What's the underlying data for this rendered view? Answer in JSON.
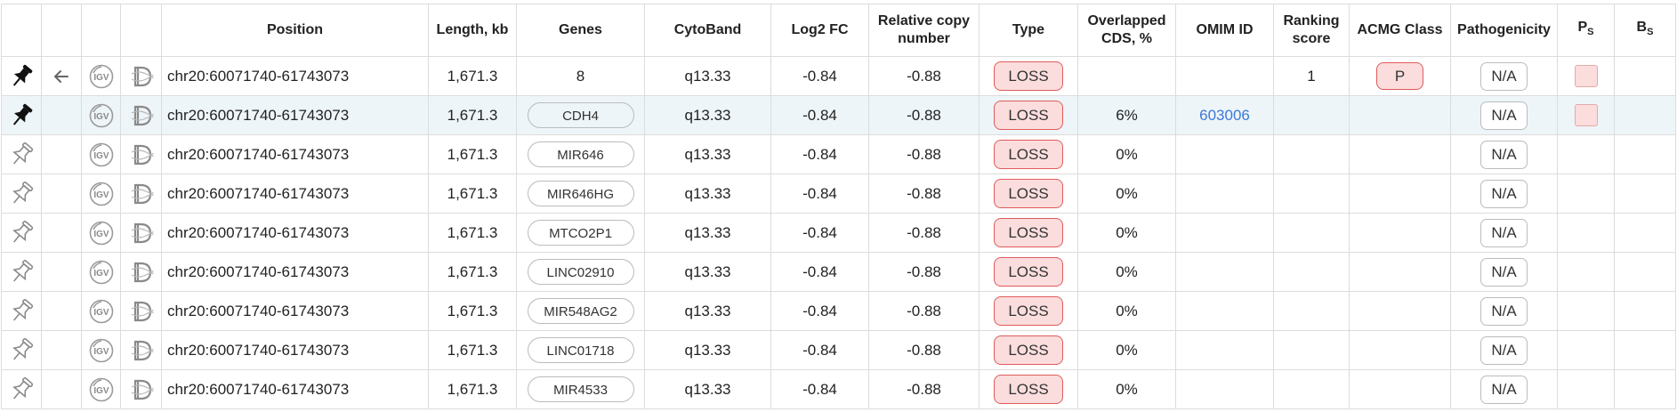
{
  "columns": {
    "position": "Position",
    "length": "Length, kb",
    "genes": "Genes",
    "cytoband": "CytoBand",
    "log2fc": "Log2 FC",
    "rcn_line1": "Relative copy",
    "rcn_line2": "number",
    "type": "Type",
    "ocds_line1": "Overlapped",
    "ocds_line2": "CDS, %",
    "omim": "OMIM ID",
    "rank_line1": "Ranking",
    "rank_line2": "score",
    "acmg": "ACMG Class",
    "pathogenicity": "Pathogenicity",
    "ps_main": "P",
    "ps_sub": "S",
    "bs_main": "B",
    "bs_sub": "S"
  },
  "icons": {
    "pin_filled": "pin-filled-icon",
    "pin_outline": "pin-outline-icon",
    "back": "arrow-left-icon",
    "igv": "igv-icon",
    "decipher": "decipher-icon"
  },
  "colors": {
    "loss_bg": "#fbdddd",
    "loss_border": "#e05a5a",
    "link": "#3c78d8",
    "highlight_row": "#eef5f8"
  },
  "rows": [
    {
      "pinned": true,
      "has_back": true,
      "position": "chr20:60071740-61743073",
      "length": "1,671.3",
      "genes": "8",
      "genes_is_count": true,
      "cytoband": "q13.33",
      "log2fc": "-0.84",
      "rcn": "-0.88",
      "type": "LOSS",
      "ocds": "",
      "omim": "",
      "rank": "1",
      "acmg": "P",
      "pathogenicity": "N/A",
      "ps": true
    },
    {
      "pinned": true,
      "has_back": false,
      "highlight": true,
      "position": "chr20:60071740-61743073",
      "length": "1,671.3",
      "genes": "CDH4",
      "cytoband": "q13.33",
      "log2fc": "-0.84",
      "rcn": "-0.88",
      "type": "LOSS",
      "ocds": "6%",
      "omim": "603006",
      "rank": "",
      "acmg": "",
      "pathogenicity": "N/A",
      "ps": true
    },
    {
      "pinned": false,
      "position": "chr20:60071740-61743073",
      "length": "1,671.3",
      "genes": "MIR646",
      "cytoband": "q13.33",
      "log2fc": "-0.84",
      "rcn": "-0.88",
      "type": "LOSS",
      "ocds": "0%",
      "omim": "",
      "rank": "",
      "acmg": "",
      "pathogenicity": "N/A",
      "ps": false
    },
    {
      "pinned": false,
      "position": "chr20:60071740-61743073",
      "length": "1,671.3",
      "genes": "MIR646HG",
      "cytoband": "q13.33",
      "log2fc": "-0.84",
      "rcn": "-0.88",
      "type": "LOSS",
      "ocds": "0%",
      "omim": "",
      "rank": "",
      "acmg": "",
      "pathogenicity": "N/A",
      "ps": false
    },
    {
      "pinned": false,
      "position": "chr20:60071740-61743073",
      "length": "1,671.3",
      "genes": "MTCO2P1",
      "cytoband": "q13.33",
      "log2fc": "-0.84",
      "rcn": "-0.88",
      "type": "LOSS",
      "ocds": "0%",
      "omim": "",
      "rank": "",
      "acmg": "",
      "pathogenicity": "N/A",
      "ps": false
    },
    {
      "pinned": false,
      "position": "chr20:60071740-61743073",
      "length": "1,671.3",
      "genes": "LINC02910",
      "cytoband": "q13.33",
      "log2fc": "-0.84",
      "rcn": "-0.88",
      "type": "LOSS",
      "ocds": "0%",
      "omim": "",
      "rank": "",
      "acmg": "",
      "pathogenicity": "N/A",
      "ps": false
    },
    {
      "pinned": false,
      "position": "chr20:60071740-61743073",
      "length": "1,671.3",
      "genes": "MIR548AG2",
      "cytoband": "q13.33",
      "log2fc": "-0.84",
      "rcn": "-0.88",
      "type": "LOSS",
      "ocds": "0%",
      "omim": "",
      "rank": "",
      "acmg": "",
      "pathogenicity": "N/A",
      "ps": false
    },
    {
      "pinned": false,
      "position": "chr20:60071740-61743073",
      "length": "1,671.3",
      "genes": "LINC01718",
      "cytoband": "q13.33",
      "log2fc": "-0.84",
      "rcn": "-0.88",
      "type": "LOSS",
      "ocds": "0%",
      "omim": "",
      "rank": "",
      "acmg": "",
      "pathogenicity": "N/A",
      "ps": false
    },
    {
      "pinned": false,
      "position": "chr20:60071740-61743073",
      "length": "1,671.3",
      "genes": "MIR4533",
      "cytoband": "q13.33",
      "log2fc": "-0.84",
      "rcn": "-0.88",
      "type": "LOSS",
      "ocds": "0%",
      "omim": "",
      "rank": "",
      "acmg": "",
      "pathogenicity": "N/A",
      "ps": false
    }
  ]
}
